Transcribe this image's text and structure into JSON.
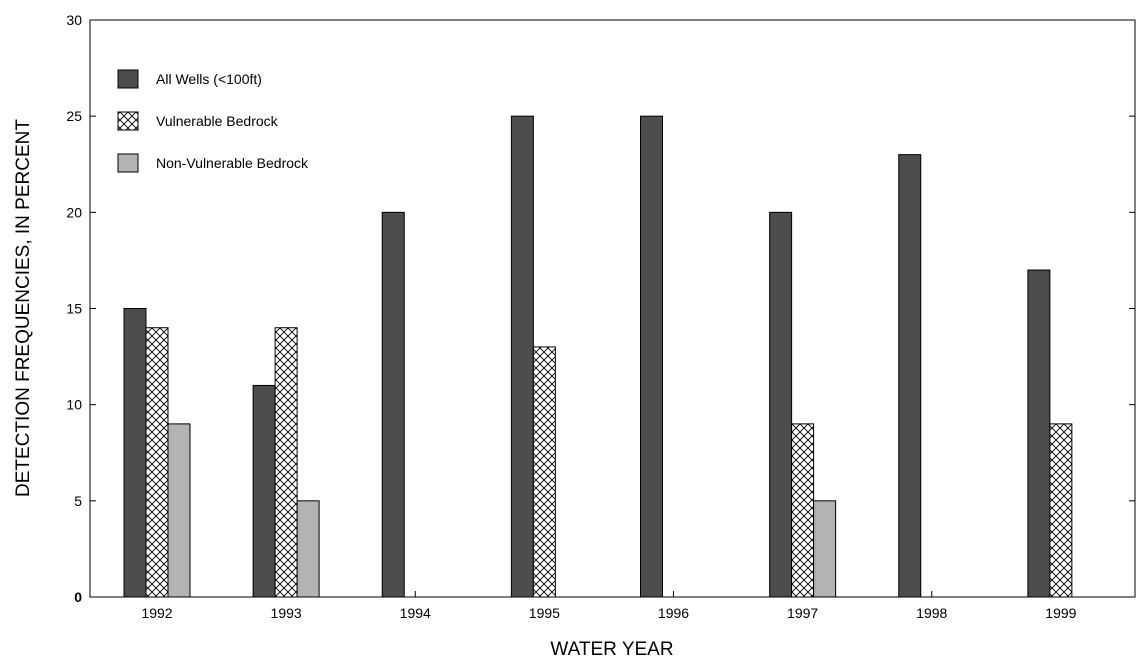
{
  "chart_data": {
    "type": "bar",
    "title": "",
    "xlabel": "WATER YEAR",
    "ylabel": "DETECTION FREQUENCIES, IN PERCENT",
    "ylim": [
      0,
      30
    ],
    "yticks": [
      0,
      5,
      10,
      15,
      20,
      25,
      30
    ],
    "categories": [
      "1992",
      "1993",
      "1994",
      "1995",
      "1996",
      "1997",
      "1998",
      "1999"
    ],
    "series": [
      {
        "name": "All Wells (<100ft)",
        "values": [
          15,
          11,
          20,
          25,
          25,
          20,
          23,
          17
        ],
        "color": "#4d4d4d",
        "pattern": "solid"
      },
      {
        "name": "Vulnerable Bedrock",
        "values": [
          14,
          14,
          null,
          13,
          null,
          9,
          null,
          9
        ],
        "color": "#ffffff",
        "pattern": "crosshatch"
      },
      {
        "name": "Non-Vulnerable Bedrock",
        "values": [
          9,
          5,
          null,
          null,
          null,
          5,
          null,
          null
        ],
        "color": "#b3b3b3",
        "pattern": "solid"
      }
    ],
    "grid": false,
    "legend_position": "top-left"
  }
}
